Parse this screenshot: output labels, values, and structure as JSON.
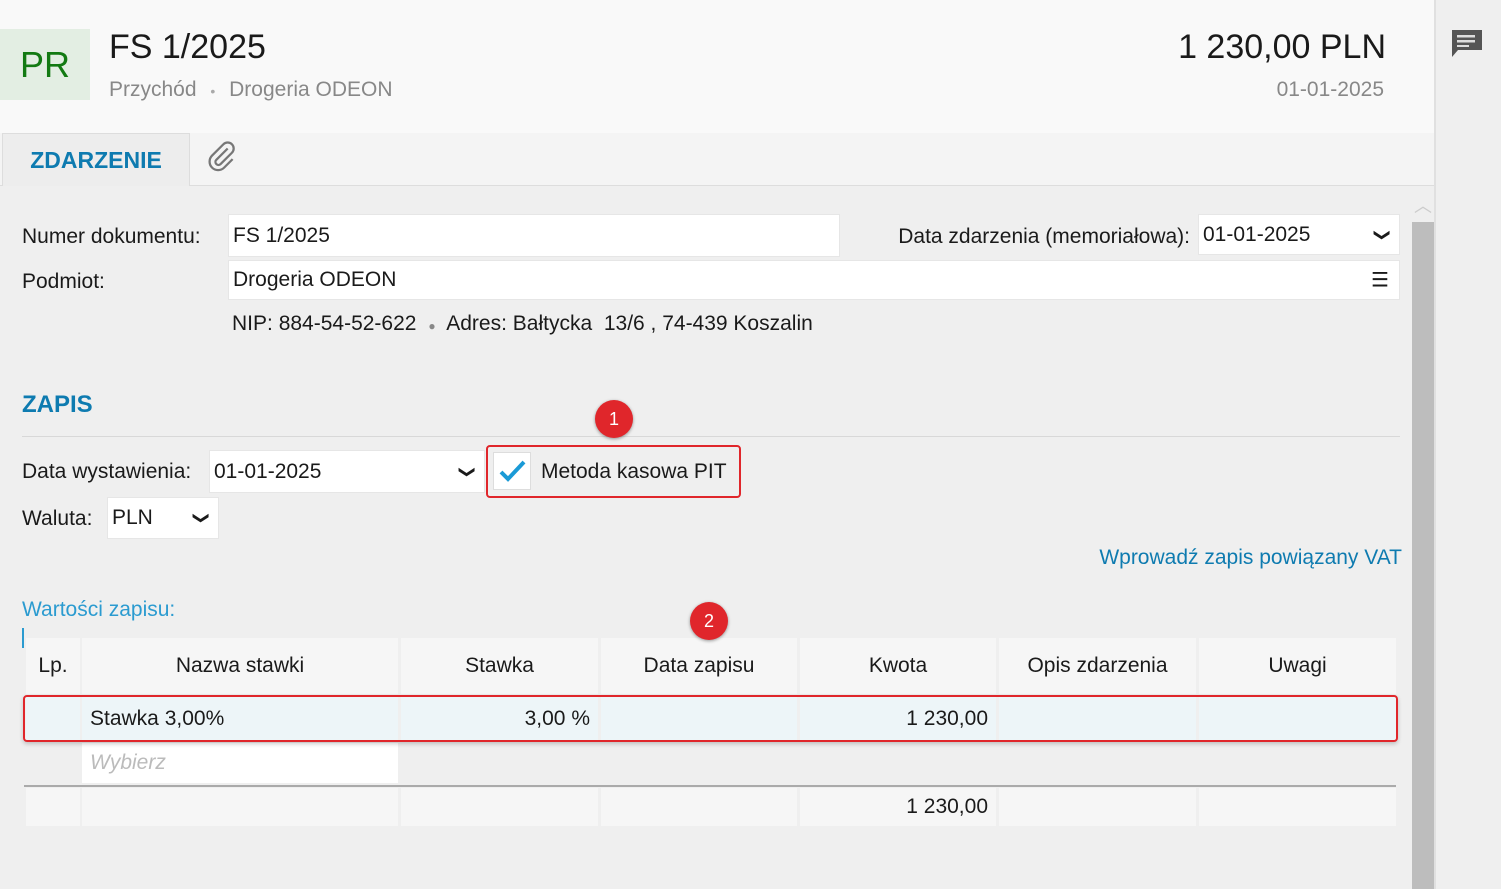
{
  "header": {
    "badge": "PR",
    "title": "FS 1/2025",
    "type": "Przychód",
    "separator": "•",
    "counterparty": "Drogeria ODEON",
    "amount": "1 230,00 PLN",
    "date": "01-01-2025"
  },
  "tabs": [
    {
      "label": "ZDARZENIE",
      "active": true
    },
    {
      "icon": "paperclip-icon"
    }
  ],
  "form": {
    "doc_number_label": "Numer dokumentu:",
    "doc_number": "FS 1/2025",
    "event_date_label": "Data zdarzenia (memoriałowa):",
    "event_date": "01-01-2025",
    "subject_label": "Podmiot:",
    "subject": "Drogeria ODEON",
    "nip_label": "NIP:",
    "nip": "884-54-52-622",
    "address_label": "Adres:",
    "address": "Bałtycka  13/6 , 74-439 Koszalin"
  },
  "zapis": {
    "title": "ZAPIS",
    "issue_date_label": "Data wystawienia:",
    "issue_date": "01-01-2025",
    "cash_method_label": "Metoda kasowa PIT",
    "cash_method_checked": true,
    "currency_label": "Waluta:",
    "currency": "PLN",
    "vat_link": "Wprowadź zapis powiązany VAT",
    "values_label": "Wartości zapisu:"
  },
  "table": {
    "headers": [
      "Lp.",
      "Nazwa stawki",
      "Stawka",
      "Data zapisu",
      "Kwota",
      "Opis zdarzenia",
      "Uwagi"
    ],
    "rows": [
      [
        "",
        "Stawka 3,00%",
        "3,00 %",
        "",
        "1 230,00",
        "",
        ""
      ]
    ],
    "placeholder": "Wybierz",
    "total": "1 230,00"
  },
  "annotations": [
    "1",
    "2"
  ],
  "colors": {
    "accent": "#0e7bb0",
    "highlight": "#e0262b",
    "badge_text": "#137a13"
  }
}
